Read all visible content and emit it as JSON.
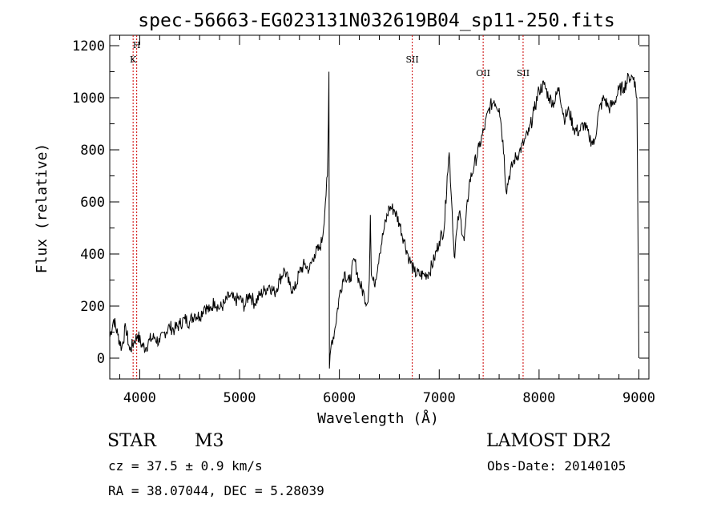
{
  "chart_data": {
    "type": "line",
    "title": "spec-56663-EG023131N032619B04_sp11-250.fits",
    "xlabel": "Wavelength (Å)",
    "ylabel": "Flux (relative)",
    "xlim": [
      3700,
      9100
    ],
    "ylim": [
      -80,
      1240
    ],
    "xticks": [
      4000,
      5000,
      6000,
      7000,
      8000,
      9000
    ],
    "yticks": [
      0,
      200,
      400,
      600,
      800,
      1000,
      1200
    ],
    "line_color": "#000000",
    "marker_color": "#cc0000",
    "series": [
      {
        "x": [
          3700,
          3740,
          3780,
          3820,
          3860,
          3900,
          3940,
          3980,
          4020,
          4060,
          4100,
          4150,
          4200,
          4250,
          4300,
          4350,
          4400,
          4450,
          4500,
          4550,
          4600,
          4650,
          4700,
          4750,
          4800,
          4850,
          4900,
          4950,
          5000,
          5050,
          5100,
          5150,
          5200,
          5250,
          5300,
          5350,
          5400,
          5450,
          5500,
          5550,
          5600,
          5650,
          5700,
          5750,
          5800,
          5830,
          5860,
          5880,
          5890,
          5895,
          5900,
          5920,
          5950,
          6000,
          6050,
          6100,
          6150,
          6200,
          6250,
          6280,
          6300,
          6310,
          6320,
          6350,
          6400,
          6450,
          6500,
          6550,
          6600,
          6650,
          6700,
          6750,
          6800,
          6850,
          6900,
          6950,
          7000,
          7050,
          7080,
          7100,
          7130,
          7150,
          7180,
          7200,
          7250,
          7300,
          7350,
          7400,
          7450,
          7500,
          7550,
          7600,
          7620,
          7650,
          7670,
          7700,
          7750,
          7800,
          7850,
          7900,
          7950,
          8000,
          8050,
          8100,
          8150,
          8200,
          8250,
          8300,
          8350,
          8400,
          8450,
          8500,
          8550,
          8600,
          8650,
          8700,
          8750,
          8800,
          8850,
          8900,
          8950,
          8980,
          9000
        ],
        "y": [
          80,
          150,
          90,
          40,
          120,
          30,
          60,
          90,
          50,
          40,
          70,
          80,
          60,
          100,
          120,
          110,
          130,
          150,
          140,
          170,
          160,
          200,
          180,
          220,
          190,
          210,
          240,
          220,
          230,
          200,
          250,
          210,
          240,
          260,
          280,
          250,
          300,
          340,
          280,
          260,
          330,
          360,
          340,
          400,
          420,
          460,
          600,
          700,
          900,
          1100,
          -40,
          60,
          100,
          240,
          330,
          290,
          380,
          290,
          240,
          210,
          300,
          550,
          320,
          280,
          400,
          500,
          580,
          570,
          520,
          450,
          380,
          330,
          320,
          320,
          330,
          380,
          450,
          500,
          700,
          790,
          560,
          390,
          500,
          560,
          450,
          670,
          740,
          810,
          880,
          960,
          990,
          960,
          900,
          780,
          640,
          700,
          760,
          790,
          830,
          870,
          950,
          1030,
          1050,
          1000,
          980,
          1040,
          920,
          950,
          880,
          870,
          900,
          850,
          820,
          950,
          1000,
          960,
          980,
          1030,
          1040,
          1080,
          1080,
          1000,
          0
        ]
      }
    ],
    "line_markers": [
      {
        "label": "H",
        "x": 3970
      },
      {
        "label": "K",
        "x": 3934
      },
      {
        "label": "SII",
        "x": 6730
      },
      {
        "label": "OII",
        "x": 7440
      },
      {
        "label": "SII",
        "x": 7840
      }
    ]
  },
  "info": {
    "object_class": "STAR",
    "subclass": "M3",
    "survey": "LAMOST DR2",
    "cz": "cz = 37.5 ± 0.9 km/s",
    "obs_date": "Obs-Date: 20140105",
    "coords": "RA =  38.07044, DEC =   5.28039"
  }
}
